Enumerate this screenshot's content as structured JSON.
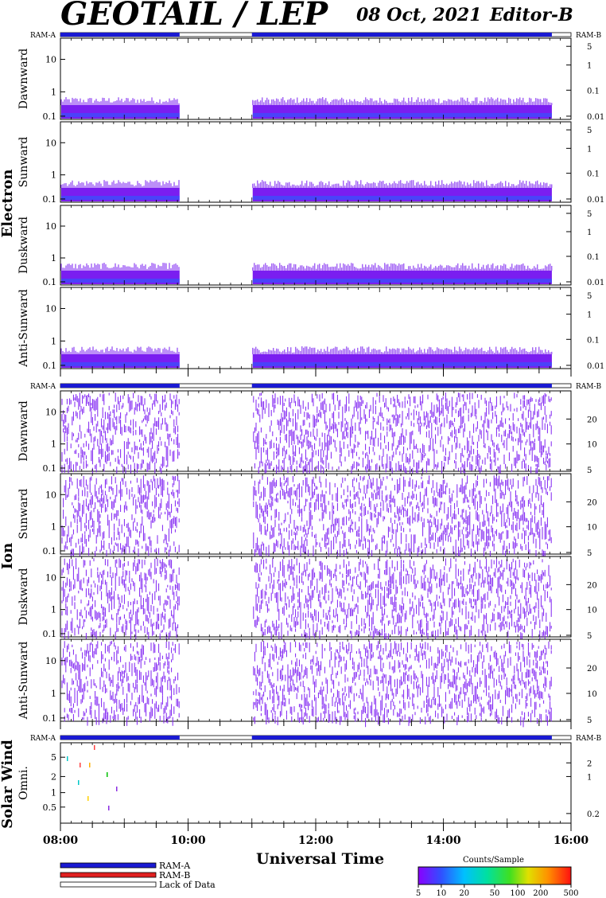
{
  "header": {
    "title": "GEOTAIL / LEP",
    "date": "08 Oct, 2021",
    "editor": "Editor-B"
  },
  "colors": {
    "ram_a": "#1a1ad2",
    "ram_b": "#e02020",
    "no_data": "#ffffff",
    "main_counts": "#8a2be2"
  },
  "groups": [
    {
      "label": "Electron",
      "ram_left": "RAM-A",
      "ram_right": "RAM-B"
    },
    {
      "label": "Ion",
      "ram_left": "RAM-A",
      "ram_right": "RAM-B"
    },
    {
      "label": "Solar Wind",
      "ram_left": "RAM-A",
      "ram_right": "RAM-B"
    }
  ],
  "panels": [
    {
      "group": "Electron",
      "label": "Dawnward",
      "left_ticks": [
        "10",
        "1",
        "0.1"
      ],
      "right_ticks": [
        "5",
        "1",
        "0.1",
        "0.01"
      ]
    },
    {
      "group": "Electron",
      "label": "Sunward",
      "left_ticks": [
        "10",
        "1",
        "0.1"
      ],
      "right_ticks": [
        "5",
        "1",
        "0.1",
        "0.01"
      ]
    },
    {
      "group": "Electron",
      "label": "Duskward",
      "left_ticks": [
        "10",
        "1",
        "0.1"
      ],
      "right_ticks": [
        "5",
        "1",
        "0.1",
        "0.01"
      ]
    },
    {
      "group": "Electron",
      "label": "Anti-Sunward",
      "left_ticks": [
        "10",
        "1",
        "0.1"
      ],
      "right_ticks": [
        "5",
        "1",
        "0.1",
        "0.01"
      ]
    },
    {
      "group": "Ion",
      "label": "Dawnward",
      "left_ticks": [
        "10",
        "1",
        "0.1"
      ],
      "right_ticks": [
        "20",
        "10",
        "5"
      ]
    },
    {
      "group": "Ion",
      "label": "Sunward",
      "left_ticks": [
        "10",
        "1",
        "0.1"
      ],
      "right_ticks": [
        "20",
        "10",
        "5"
      ]
    },
    {
      "group": "Ion",
      "label": "Duskward",
      "left_ticks": [
        "10",
        "1",
        "0.1"
      ],
      "right_ticks": [
        "20",
        "10",
        "5"
      ]
    },
    {
      "group": "Ion",
      "label": "Anti-Sunward",
      "left_ticks": [
        "10",
        "1",
        "0.1"
      ],
      "right_ticks": [
        "20",
        "10",
        "5"
      ]
    },
    {
      "group": "Solar Wind",
      "label": "Omni.",
      "left_ticks": [
        "5",
        "2",
        "1",
        "0.5"
      ],
      "right_ticks": [
        "2",
        "1",
        "0.2"
      ]
    }
  ],
  "xaxis": {
    "title": "Universal Time",
    "ticks": [
      "08:00",
      "10:00",
      "12:00",
      "14:00",
      "16:00"
    ]
  },
  "legend": {
    "items": [
      "RAM-A",
      "RAM-B",
      "Lack of Data"
    ]
  },
  "colorbar": {
    "title": "Counts/Sample",
    "ticks": [
      "5",
      "10",
      "20",
      "50",
      "100",
      "200",
      "500"
    ]
  },
  "chart_data": {
    "type": "heatmap",
    "title": "GEOTAIL / LEP",
    "xlabel": "Universal Time",
    "x_range": [
      "08:00",
      "16:00"
    ],
    "data_gap": [
      "09:52",
      "11:00"
    ],
    "data_end": "15:42",
    "ram_status": [
      {
        "from": "08:00",
        "to": "09:52",
        "mode": "RAM-A"
      },
      {
        "from": "09:52",
        "to": "11:00",
        "mode": "Lack of Data"
      },
      {
        "from": "11:00",
        "to": "15:42",
        "mode": "RAM-A"
      },
      {
        "from": "15:42",
        "to": "16:00",
        "mode": "Lack of Data"
      }
    ],
    "energy_axis_left": "log",
    "colorbar_scale": "log",
    "colorbar_range": [
      5,
      500
    ]
  }
}
